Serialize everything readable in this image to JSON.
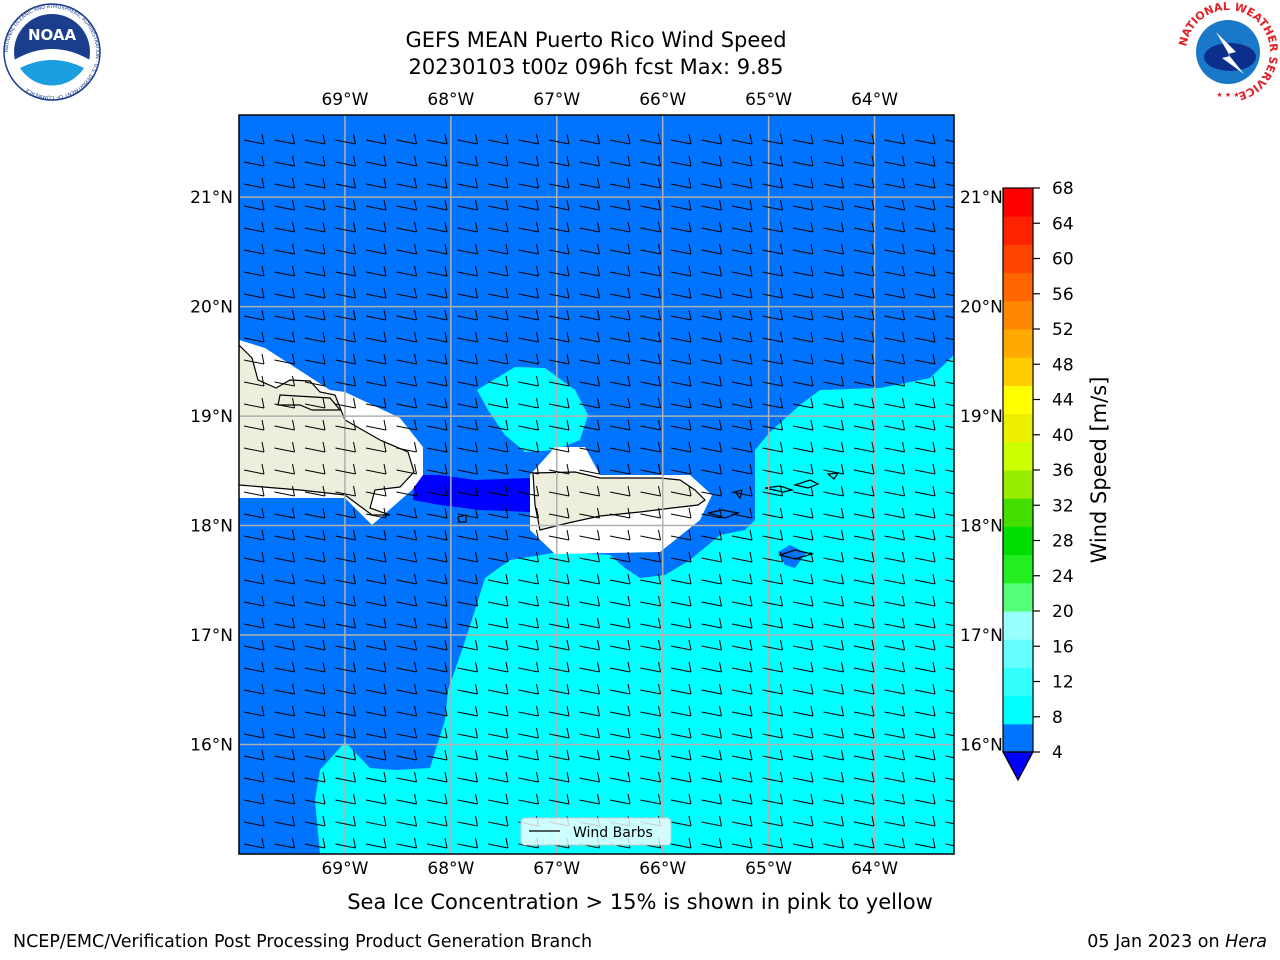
{
  "title": {
    "line1": "GEFS MEAN Puerto Rico Wind Speed",
    "line2": "20230103 t00z 096h fcst   Max: 9.85"
  },
  "logos": {
    "left": "NOAA",
    "left_ring": "NATIONAL OCEANIC AND ATMOSPHERIC ADMINISTRATION · U.S. DEPARTMENT OF COMMERCE",
    "right_ring": "NATIONAL WEATHER SERVICE"
  },
  "map": {
    "lon_labels": [
      "69°W",
      "68°W",
      "67°W",
      "66°W",
      "65°W",
      "64°W"
    ],
    "lat_labels": [
      "21°N",
      "20°N",
      "19°N",
      "18°N",
      "17°N",
      "16°N"
    ],
    "lon_range": [
      -70.0,
      -63.25
    ],
    "lat_range": [
      15.0,
      21.75
    ],
    "legend_label": "Wind Barbs",
    "colors": {
      "wind_4_8": "#0074ff",
      "wind_8_12": "#00ffff",
      "wind_below_4": "#0000ff",
      "land": "#eeeedd"
    }
  },
  "colorbar": {
    "label": "Wind Speed [m/s]",
    "ticks": [
      "4",
      "8",
      "12",
      "16",
      "20",
      "24",
      "28",
      "32",
      "36",
      "40",
      "44",
      "48",
      "52",
      "56",
      "60",
      "64",
      "68"
    ],
    "colors": [
      "#0074ff",
      "#00ffff",
      "#33ffff",
      "#66ffff",
      "#99ffff",
      "#55ff77",
      "#22ee22",
      "#00dd00",
      "#44dd00",
      "#99ee00",
      "#ccff00",
      "#eeee00",
      "#ffff00",
      "#ffcc00",
      "#ffaa00",
      "#ff8800",
      "#ff6600",
      "#ff4400",
      "#ff2200",
      "#ff0000"
    ],
    "under_color": "#0000ff"
  },
  "subtitle": "Sea Ice Concentration > 15% is shown in pink to yellow",
  "footer": {
    "left": "NCEP/EMC/Verification Post Processing Product Generation Branch",
    "date": "05 Jan 2023 on ",
    "host": "Hera"
  }
}
